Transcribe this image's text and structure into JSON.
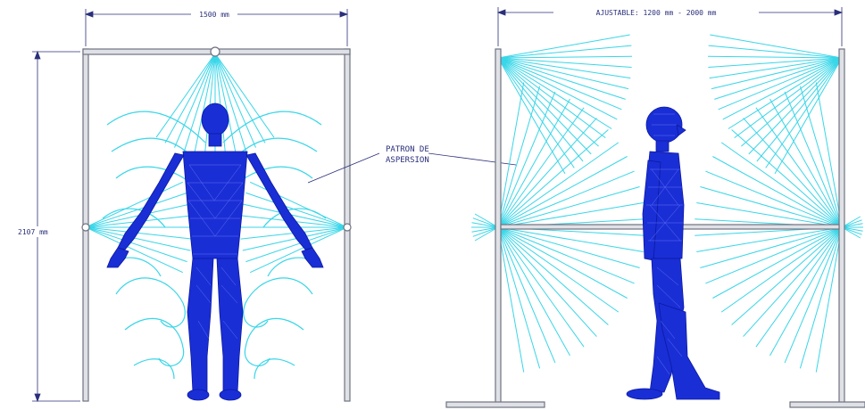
{
  "dimensions": {
    "front_width": "1500 mm",
    "front_height": "2107 mm",
    "side_width": "AJUSTABLE: 1200 mm - 2000 mm"
  },
  "callout": {
    "line1": "PATRON DE",
    "line2": "ASPERSION"
  },
  "colors": {
    "frame": "#b9bcc4",
    "frame_dark": "#6f7380",
    "spray": "#38d6e8",
    "figure": "#1a2ed6",
    "dimension": "#2a2f7a"
  }
}
